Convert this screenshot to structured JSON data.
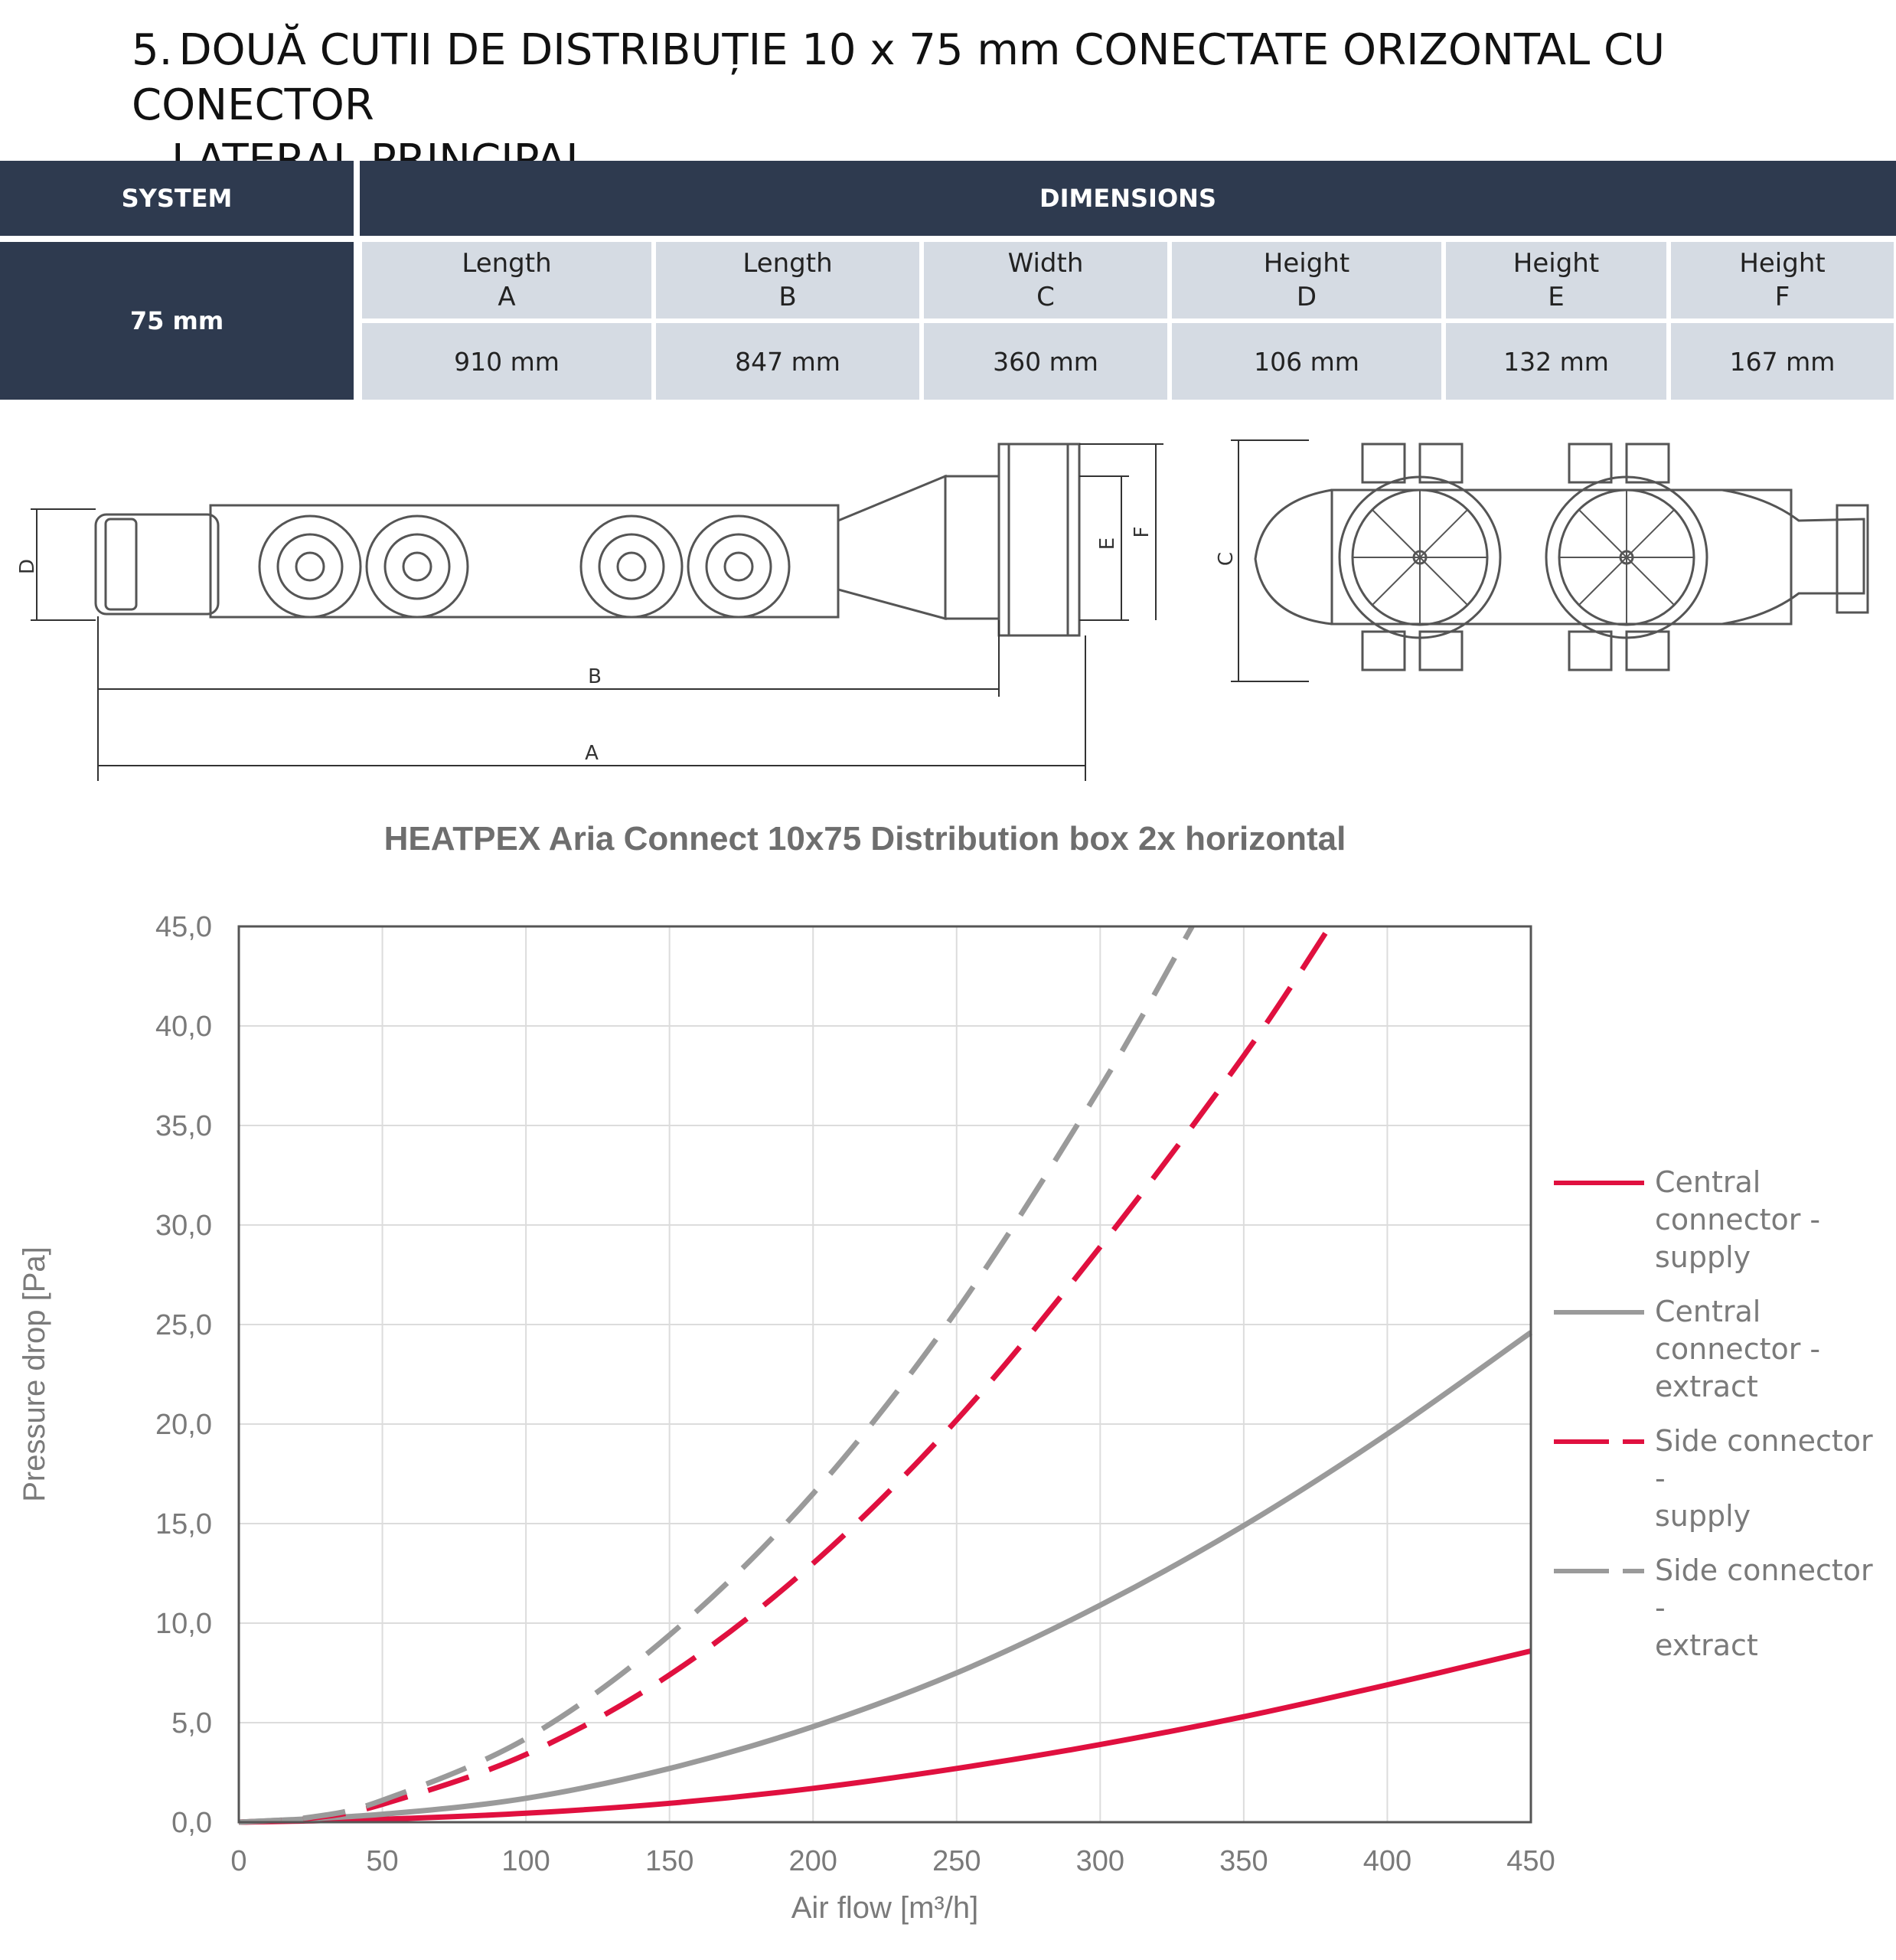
{
  "heading": {
    "number": "5.",
    "line1": "DOUĂ CUTII DE DISTRIBUȚIE 10 x 75 mm CONECTATE ORIZONTAL CU CONECTOR",
    "line2": "LATERAL  PRINCIPAL"
  },
  "table": {
    "system_header": "SYSTEM",
    "dimensions_header": "DIMENSIONS",
    "system_value": "75 mm",
    "columns": [
      {
        "name": "Length",
        "letter": "A",
        "value": "910 mm"
      },
      {
        "name": "Length",
        "letter": "B",
        "value": "847 mm"
      },
      {
        "name": "Width",
        "letter": "C",
        "value": "360 mm"
      },
      {
        "name": "Height",
        "letter": "D",
        "value": "106 mm"
      },
      {
        "name": "Height",
        "letter": "E",
        "value": "132 mm"
      },
      {
        "name": "Height",
        "letter": "F",
        "value": "167 mm"
      }
    ]
  },
  "drawing": {
    "side_labels": {
      "a": "A",
      "b": "B",
      "d": "D",
      "e": "E",
      "f": "F"
    },
    "top_labels": {
      "c": "C"
    }
  },
  "chart_data": {
    "type": "line",
    "title": "HEATPEX Aria Connect 10x75 Distribution box 2x horizontal",
    "xlabel": "Air flow [m³/h]",
    "ylabel": "Pressure drop [Pa]",
    "xlim": [
      0,
      450
    ],
    "ylim": [
      0,
      45
    ],
    "xticks": [
      "0",
      "50",
      "100",
      "150",
      "200",
      "250",
      "300",
      "350",
      "400",
      "450"
    ],
    "yticks": [
      "0,0",
      "5,0",
      "10,0",
      "15,0",
      "20,0",
      "25,0",
      "30,0",
      "35,0",
      "40,0",
      "45,0"
    ],
    "grid": true,
    "legend_position": "right",
    "series": [
      {
        "name": "Central connector - supply",
        "legend_lines": [
          "Central",
          "connector -",
          "supply"
        ],
        "color": "#e0103f",
        "dash": "solid",
        "x": [
          0,
          50,
          100,
          150,
          200,
          250,
          300,
          350,
          400,
          450
        ],
        "y": [
          0,
          0.15,
          0.45,
          0.95,
          1.7,
          2.7,
          3.9,
          5.3,
          6.9,
          8.6
        ]
      },
      {
        "name": "Central connector - extract",
        "legend_lines": [
          "Central",
          "connector -",
          "extract"
        ],
        "color": "#9a9a9a",
        "dash": "solid",
        "x": [
          0,
          50,
          100,
          150,
          200,
          250,
          300,
          350,
          400,
          450
        ],
        "y": [
          0,
          0.4,
          1.2,
          2.7,
          4.8,
          7.5,
          10.9,
          14.9,
          19.5,
          24.6
        ]
      },
      {
        "name": "Side connector - supply",
        "legend_lines": [
          "Side connector -",
          "supply"
        ],
        "color": "#e0103f",
        "dash": "dashed",
        "x": [
          0,
          25,
          50,
          100,
          150,
          200,
          250,
          300,
          350,
          380
        ],
        "y": [
          0,
          0.2,
          0.9,
          3.4,
          7.4,
          13.0,
          20.2,
          28.9,
          38.5,
          45.0
        ]
      },
      {
        "name": "Side connector - extract",
        "legend_lines": [
          "Side connector -",
          "extract"
        ],
        "color": "#9a9a9a",
        "dash": "dashed",
        "x": [
          0,
          25,
          50,
          100,
          150,
          200,
          250,
          300,
          332
        ],
        "y": [
          0,
          0.25,
          1.1,
          4.2,
          9.4,
          16.5,
          25.7,
          36.9,
          45.0
        ]
      }
    ]
  }
}
